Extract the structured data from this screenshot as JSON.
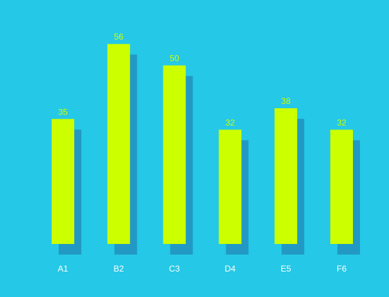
{
  "chart_data": {
    "type": "bar",
    "categories": [
      "A1",
      "B2",
      "C3",
      "D4",
      "E5",
      "F6"
    ],
    "values": [
      35,
      56,
      50,
      32,
      38,
      32
    ],
    "color": "#ccff00"
  }
}
